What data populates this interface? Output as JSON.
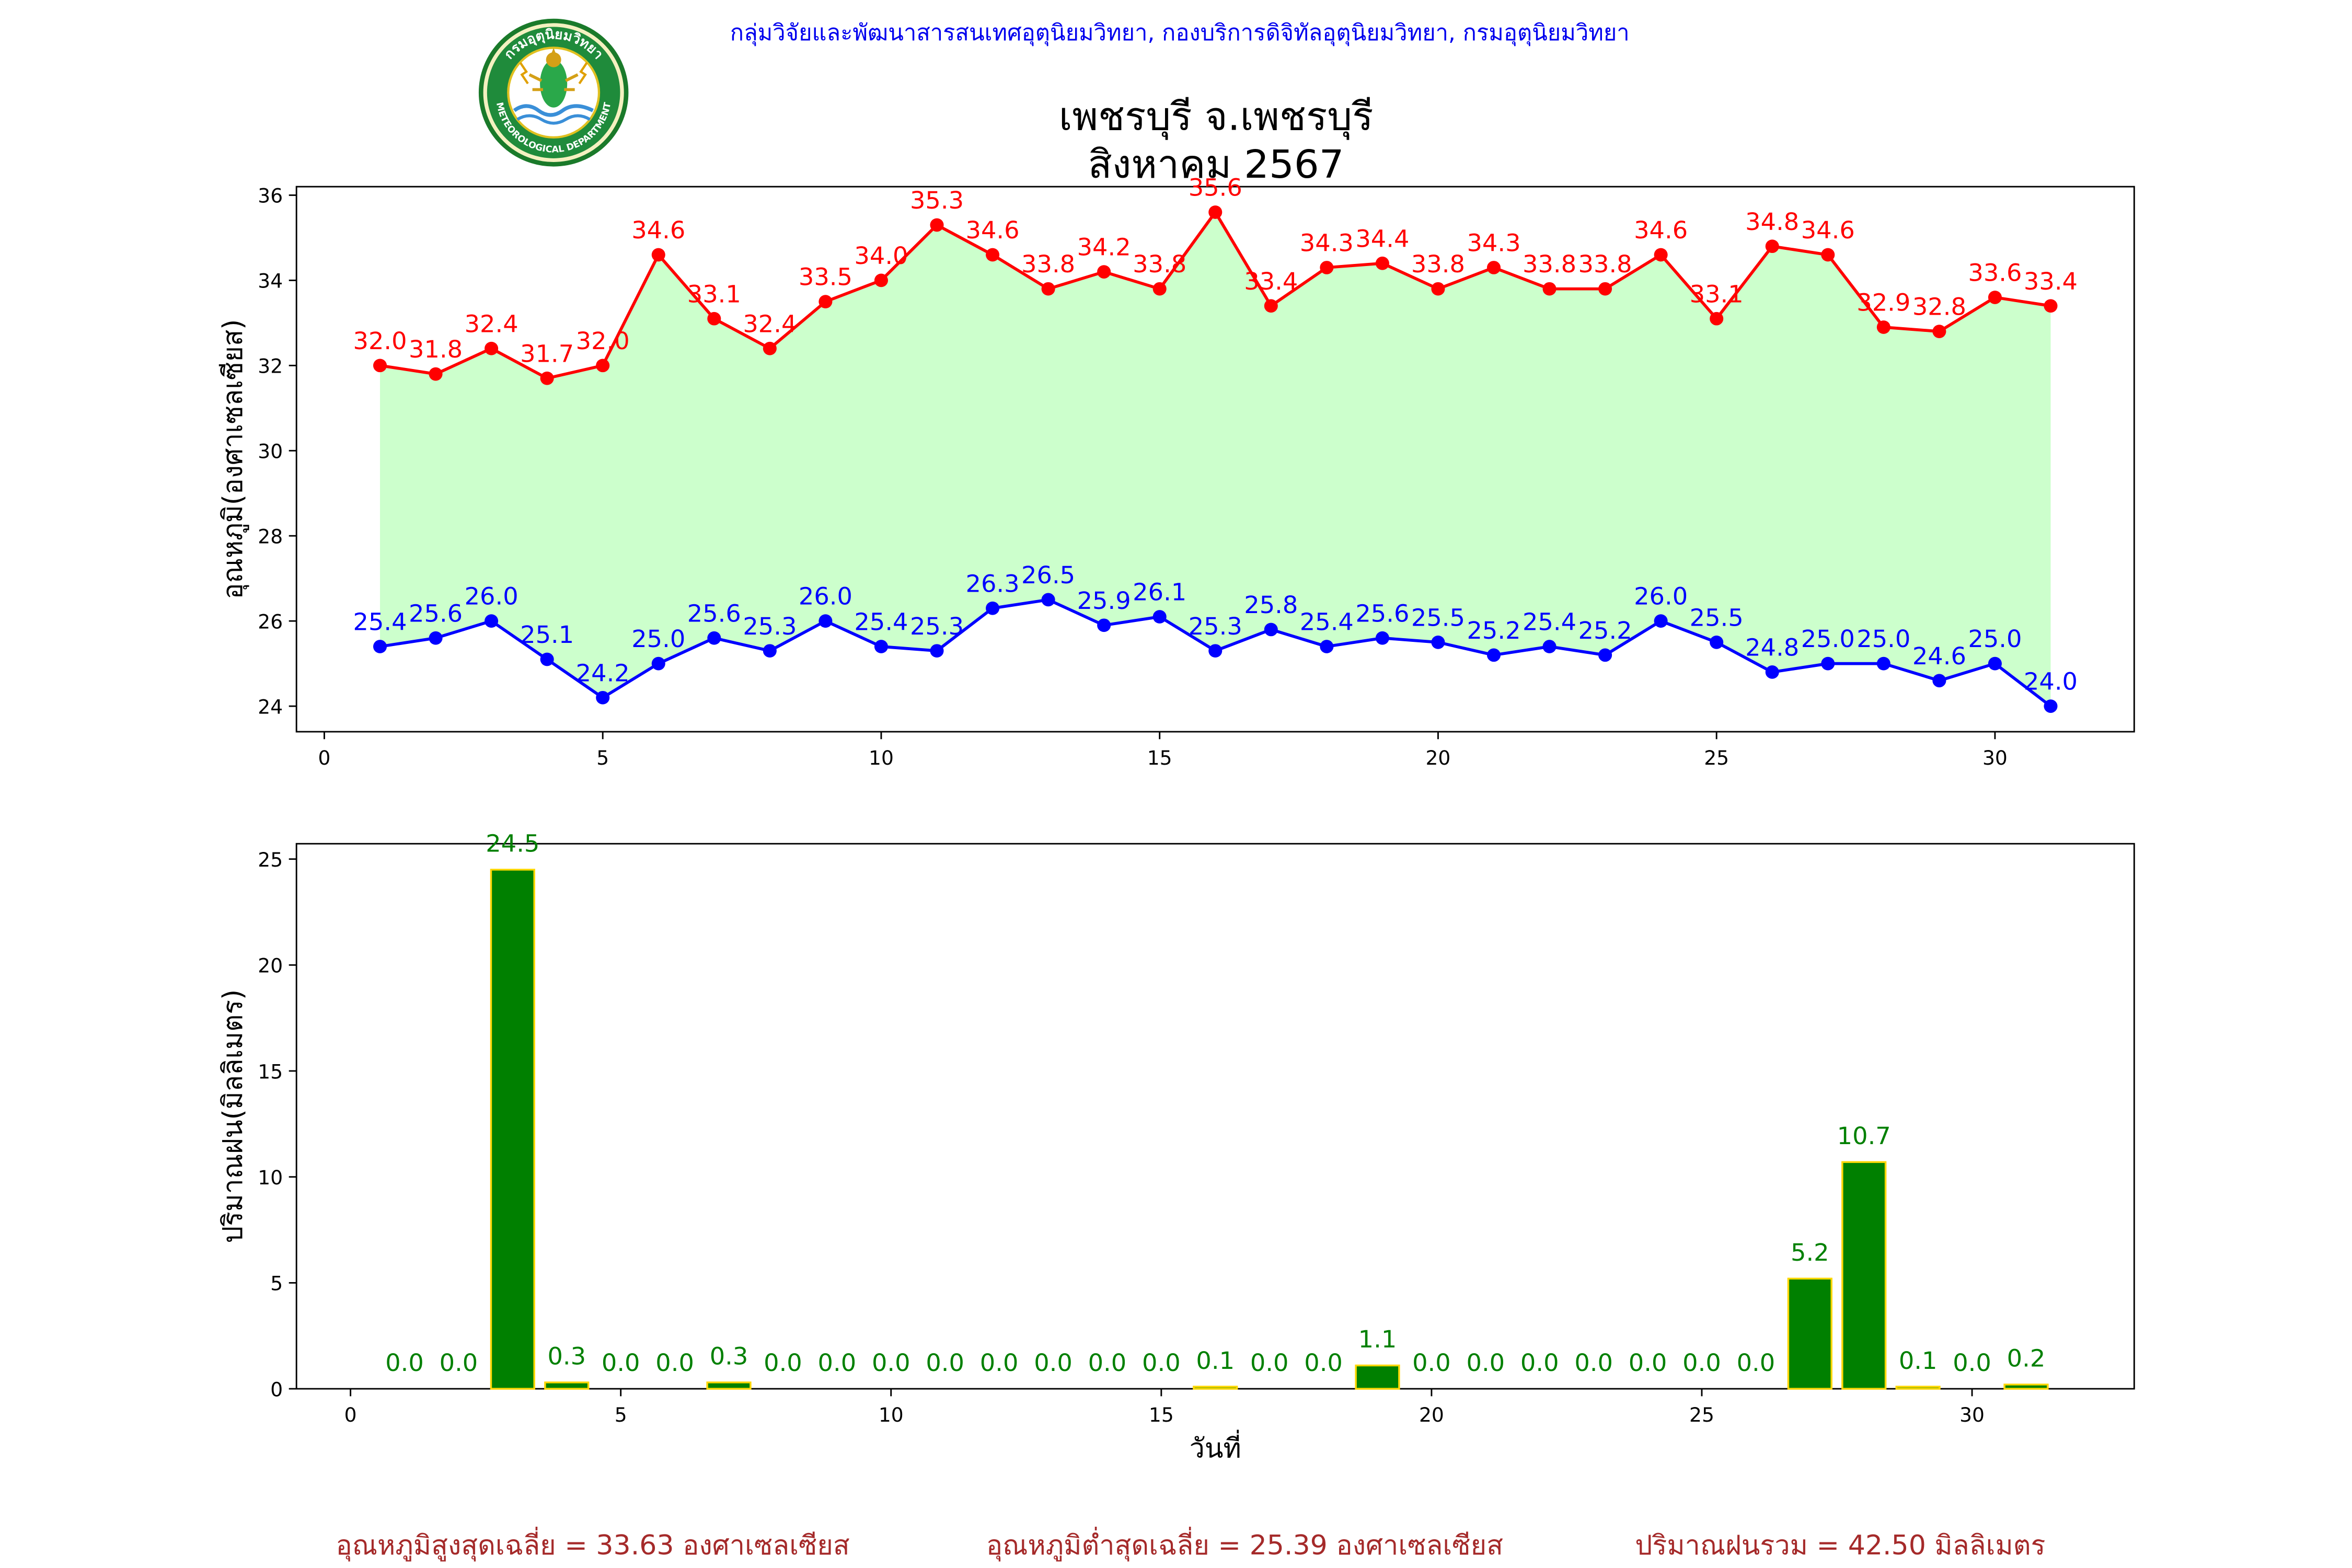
{
  "header": {
    "org": "กลุ่มวิจัยและพัฒนาสารสนเทศอุตุนิยมวิทยา, กองบริการดิจิทัลอุตุนิยมวิทยา, กรมอุตุนิยมวิทยา",
    "logo_top_text": "กรมอุตุนิยมวิทยา",
    "logo_bottom_text": "METEOROLOGICAL DEPARTMENT",
    "title_station": "เพชรบุรี จ.เพชรบุรี",
    "title_period": "สิงหาคม 2567"
  },
  "colors": {
    "max_line": "#ff0000",
    "min_line": "#0000ff",
    "fill_between": "#ccffcc",
    "rain_bar": "#008000",
    "rain_edge": "#ffd700",
    "rain_label": "#008000",
    "summary_text": "#a52a2a",
    "org_text": "#0000ee"
  },
  "chart_data": [
    {
      "type": "line",
      "ylabel": "อุณหภูมิ(องศาเซลเซียส)",
      "xlabel": "",
      "x": [
        1,
        2,
        3,
        4,
        5,
        6,
        7,
        8,
        9,
        10,
        11,
        12,
        13,
        14,
        15,
        16,
        17,
        18,
        19,
        20,
        21,
        22,
        23,
        24,
        25,
        26,
        27,
        28,
        29,
        30,
        31
      ],
      "series": [
        {
          "key": "max",
          "values": [
            32.0,
            31.8,
            32.4,
            31.7,
            32.0,
            34.6,
            33.1,
            32.4,
            33.5,
            34.0,
            35.3,
            34.6,
            33.8,
            34.2,
            33.8,
            35.6,
            33.4,
            34.3,
            34.4,
            33.8,
            34.3,
            33.8,
            33.8,
            34.6,
            33.1,
            34.8,
            34.6,
            32.9,
            32.8,
            33.6,
            33.4
          ]
        },
        {
          "key": "min",
          "values": [
            25.4,
            25.6,
            26.0,
            25.1,
            24.2,
            25.0,
            25.6,
            25.3,
            26.0,
            25.4,
            25.3,
            26.3,
            26.5,
            25.9,
            26.1,
            25.3,
            25.8,
            25.4,
            25.6,
            25.5,
            25.2,
            25.4,
            25.2,
            26.0,
            25.5,
            24.8,
            25.0,
            25.0,
            24.6,
            25.0,
            24.0
          ]
        }
      ],
      "xlim": [
        -0.5,
        32.5
      ],
      "ylim": [
        23.4,
        36.2
      ],
      "xticks": [
        0,
        5,
        10,
        15,
        20,
        25,
        30
      ],
      "yticks": [
        24,
        26,
        28,
        30,
        32,
        34,
        36
      ],
      "fill_between": true,
      "grid": false
    },
    {
      "type": "bar",
      "ylabel": "ปริมาณฝน(มิลลิเมตร)",
      "xlabel": "วันที่",
      "x": [
        1,
        2,
        3,
        4,
        5,
        6,
        7,
        8,
        9,
        10,
        11,
        12,
        13,
        14,
        15,
        16,
        17,
        18,
        19,
        20,
        21,
        22,
        23,
        24,
        25,
        26,
        27,
        28,
        29,
        30,
        31
      ],
      "values": [
        0.0,
        0.0,
        24.5,
        0.3,
        0.0,
        0.0,
        0.3,
        0.0,
        0.0,
        0.0,
        0.0,
        0.0,
        0.0,
        0.0,
        0.0,
        0.1,
        0.0,
        0.0,
        1.1,
        0.0,
        0.0,
        0.0,
        0.0,
        0.0,
        0.0,
        0.0,
        5.2,
        10.7,
        0.1,
        0.0,
        0.2
      ],
      "xlim": [
        -1.0,
        33.0
      ],
      "ylim": [
        0,
        25.725
      ],
      "xticks": [
        0,
        5,
        10,
        15,
        20,
        25,
        30
      ],
      "yticks": [
        0,
        5,
        10,
        15,
        20,
        25
      ],
      "grid": false
    }
  ],
  "summary": {
    "max_avg": "อุณหภูมิสูงสุดเฉลี่ย = 33.63 องศาเซลเซียส",
    "min_avg": "อุณหภูมิต่ำสุดเฉลี่ย = 25.39 องศาเซลเซียส",
    "rain_total": "ปริมาณฝนรวม = 42.50 มิลลิเมตร"
  }
}
